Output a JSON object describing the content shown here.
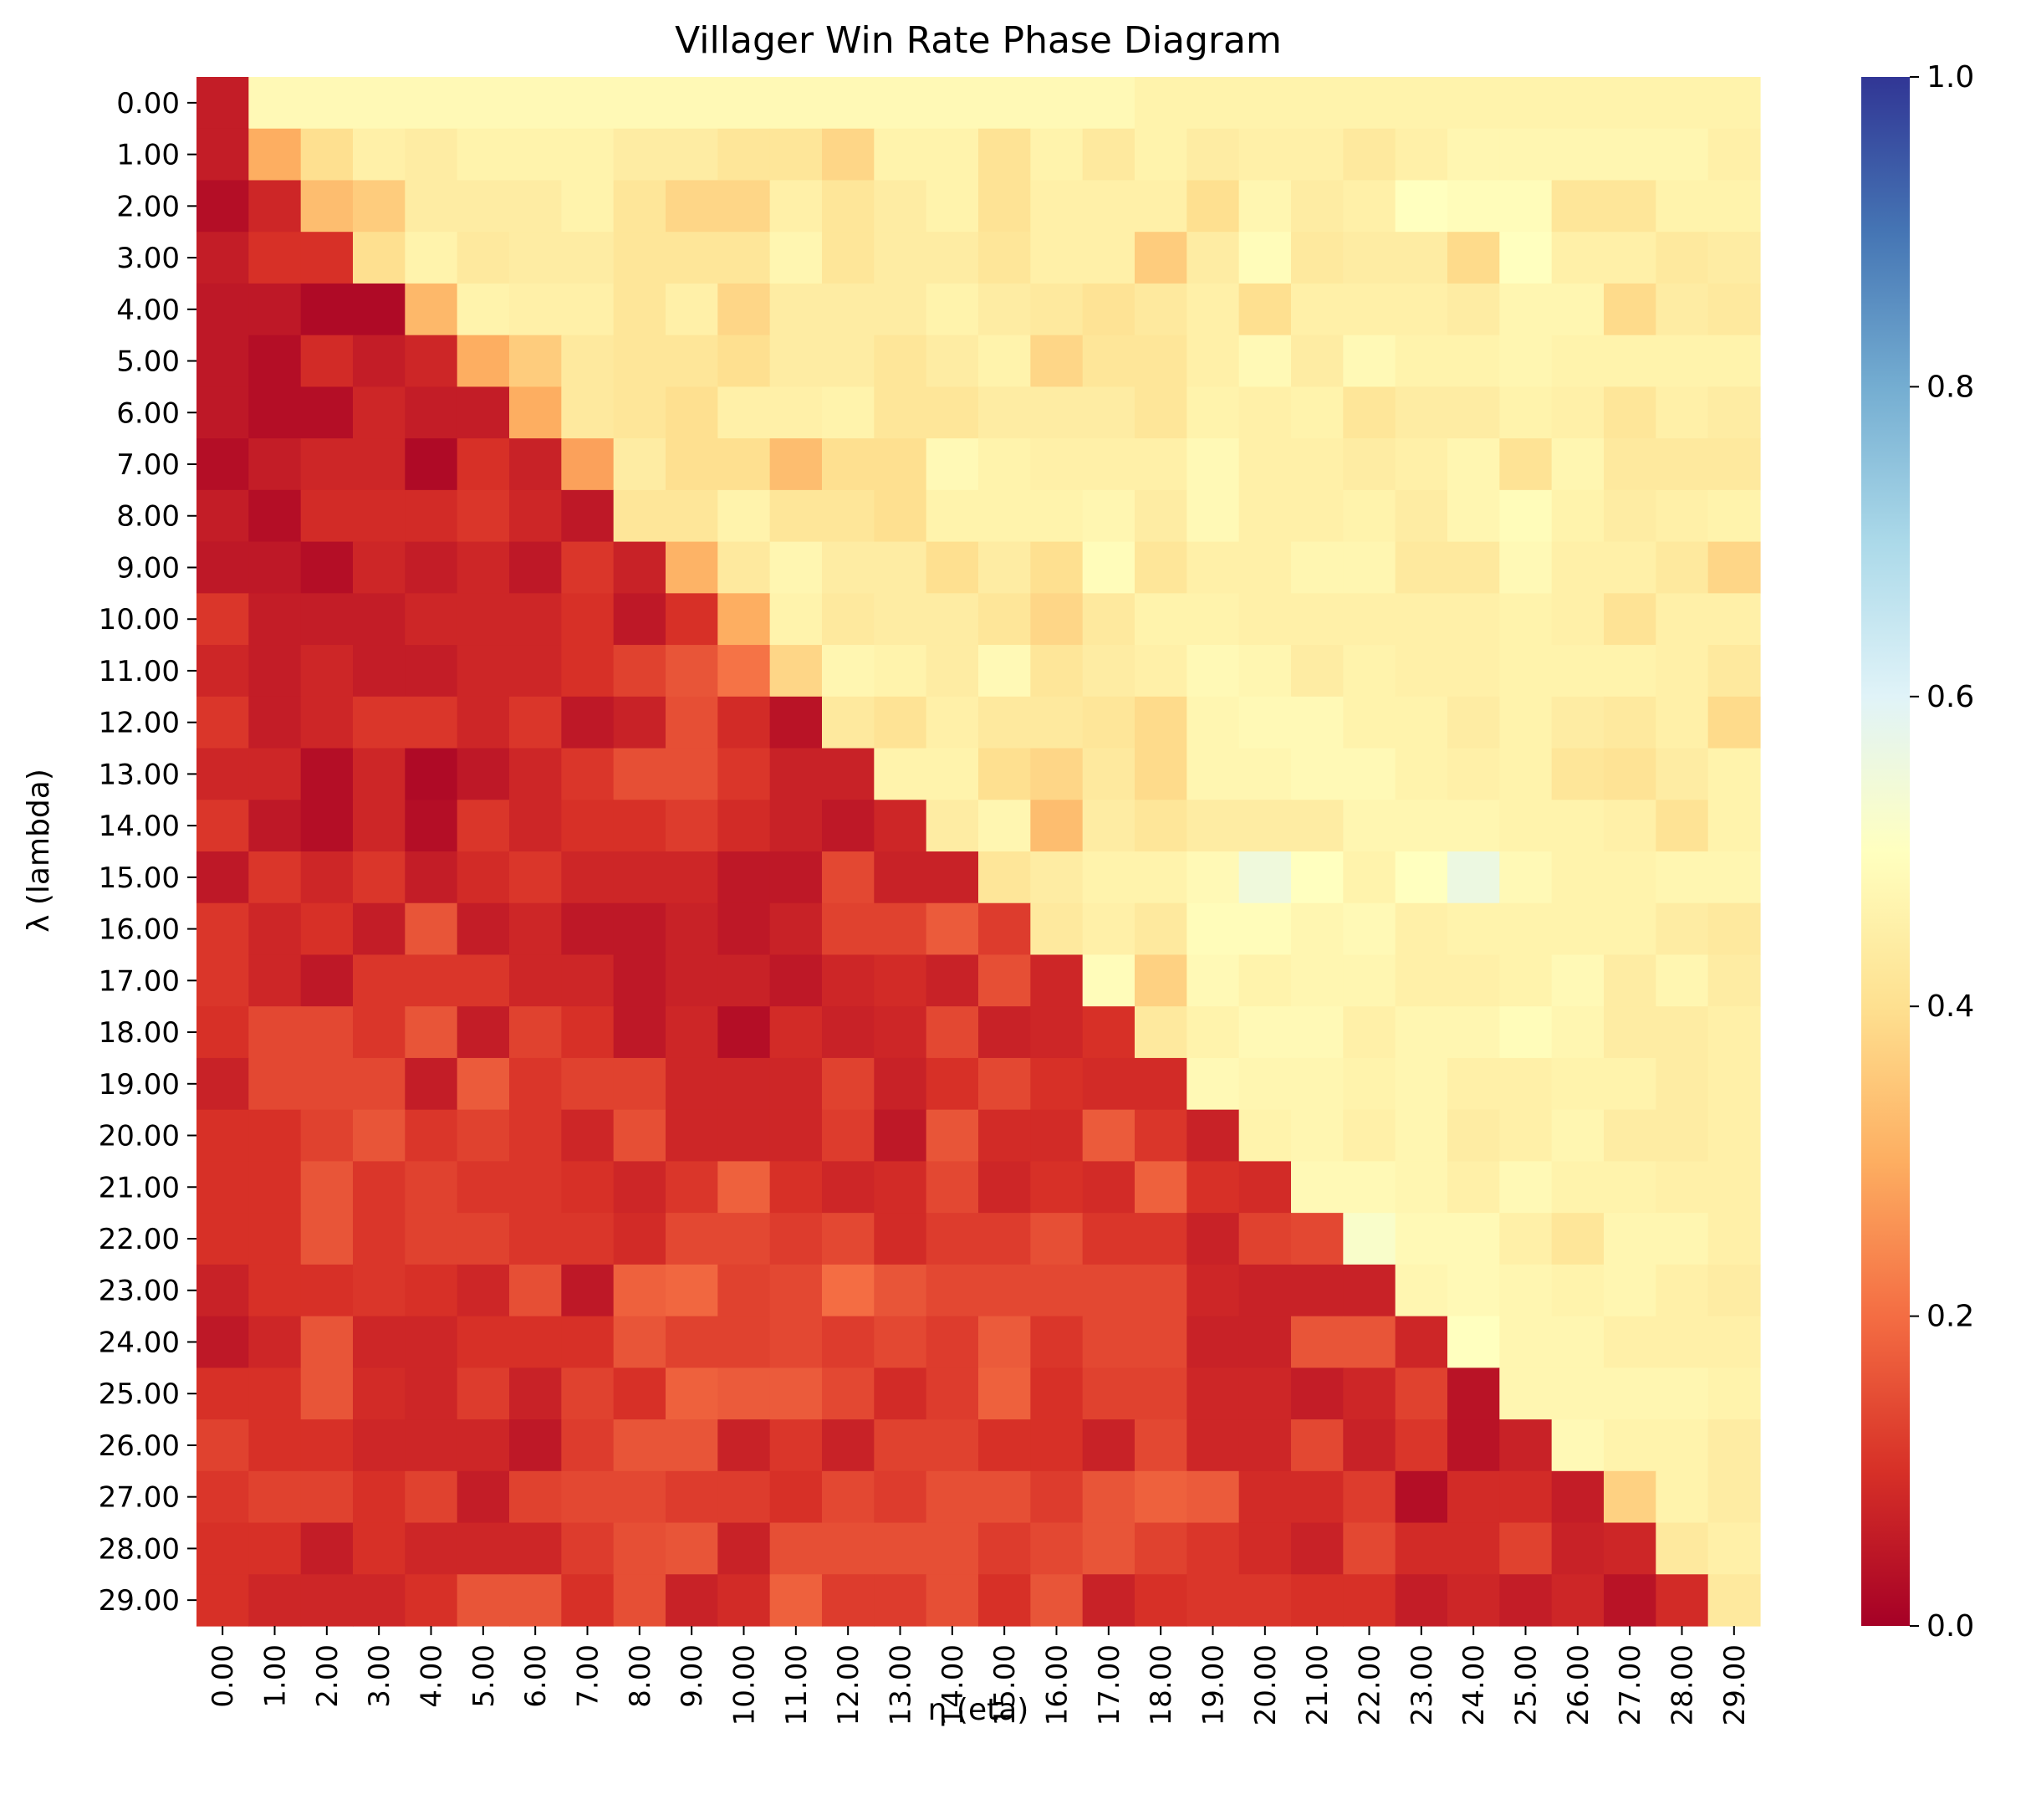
{
  "chart_data": {
    "type": "heatmap",
    "title": "Villager Win Rate Phase Diagram",
    "xlabel": "η (eta)",
    "ylabel": "λ (lambda)",
    "x_tick_labels": [
      "0.00",
      "1.00",
      "2.00",
      "3.00",
      "4.00",
      "5.00",
      "6.00",
      "7.00",
      "8.00",
      "9.00",
      "10.00",
      "11.00",
      "12.00",
      "13.00",
      "14.00",
      "15.00",
      "16.00",
      "17.00",
      "18.00",
      "19.00",
      "20.00",
      "21.00",
      "22.00",
      "23.00",
      "24.00",
      "25.00",
      "26.00",
      "27.00",
      "28.00",
      "29.00"
    ],
    "y_tick_labels": [
      "0.00",
      "1.00",
      "2.00",
      "3.00",
      "4.00",
      "5.00",
      "6.00",
      "7.00",
      "8.00",
      "9.00",
      "10.00",
      "11.00",
      "12.00",
      "13.00",
      "14.00",
      "15.00",
      "16.00",
      "17.00",
      "18.00",
      "19.00",
      "20.00",
      "21.00",
      "22.00",
      "23.00",
      "24.00",
      "25.00",
      "26.00",
      "27.00",
      "28.00",
      "29.00"
    ],
    "colormap": "RdYlBu",
    "vmin": 0.0,
    "vmax": 1.0,
    "colorbar_ticks": [
      "0.0",
      "0.2",
      "0.4",
      "0.6",
      "0.8",
      "1.0"
    ],
    "values": [
      [
        0.06,
        0.48,
        0.48,
        0.48,
        0.48,
        0.48,
        0.48,
        0.48,
        0.48,
        0.48,
        0.48,
        0.48,
        0.48,
        0.48,
        0.48,
        0.48,
        0.48,
        0.48,
        0.46,
        0.46,
        0.46,
        0.46,
        0.46,
        0.46,
        0.46,
        0.46,
        0.46,
        0.46,
        0.46,
        0.46
      ],
      [
        0.06,
        0.3,
        0.4,
        0.45,
        0.44,
        0.46,
        0.46,
        0.46,
        0.44,
        0.44,
        0.42,
        0.42,
        0.38,
        0.46,
        0.46,
        0.41,
        0.46,
        0.43,
        0.46,
        0.44,
        0.45,
        0.45,
        0.43,
        0.45,
        0.47,
        0.47,
        0.47,
        0.47,
        0.47,
        0.45
      ],
      [
        0.03,
        0.08,
        0.33,
        0.36,
        0.44,
        0.44,
        0.44,
        0.46,
        0.42,
        0.38,
        0.38,
        0.45,
        0.42,
        0.44,
        0.46,
        0.41,
        0.45,
        0.45,
        0.45,
        0.4,
        0.47,
        0.44,
        0.45,
        0.5,
        0.49,
        0.49,
        0.42,
        0.42,
        0.46,
        0.46
      ],
      [
        0.06,
        0.1,
        0.1,
        0.4,
        0.46,
        0.43,
        0.44,
        0.44,
        0.42,
        0.42,
        0.42,
        0.47,
        0.42,
        0.44,
        0.44,
        0.42,
        0.45,
        0.45,
        0.36,
        0.44,
        0.49,
        0.43,
        0.44,
        0.44,
        0.39,
        0.5,
        0.45,
        0.45,
        0.43,
        0.44
      ],
      [
        0.05,
        0.05,
        0.02,
        0.02,
        0.32,
        0.46,
        0.45,
        0.45,
        0.42,
        0.45,
        0.38,
        0.44,
        0.44,
        0.44,
        0.46,
        0.44,
        0.43,
        0.41,
        0.43,
        0.45,
        0.4,
        0.45,
        0.45,
        0.45,
        0.44,
        0.47,
        0.47,
        0.39,
        0.44,
        0.43
      ],
      [
        0.05,
        0.03,
        0.09,
        0.06,
        0.08,
        0.3,
        0.36,
        0.43,
        0.42,
        0.42,
        0.4,
        0.44,
        0.44,
        0.42,
        0.44,
        0.46,
        0.38,
        0.42,
        0.42,
        0.45,
        0.48,
        0.44,
        0.48,
        0.46,
        0.46,
        0.47,
        0.46,
        0.46,
        0.46,
        0.46
      ],
      [
        0.05,
        0.03,
        0.03,
        0.08,
        0.06,
        0.06,
        0.3,
        0.43,
        0.42,
        0.4,
        0.45,
        0.45,
        0.46,
        0.42,
        0.42,
        0.44,
        0.44,
        0.44,
        0.42,
        0.46,
        0.45,
        0.46,
        0.42,
        0.44,
        0.44,
        0.46,
        0.45,
        0.42,
        0.45,
        0.44
      ],
      [
        0.03,
        0.06,
        0.08,
        0.08,
        0.02,
        0.1,
        0.07,
        0.28,
        0.44,
        0.4,
        0.4,
        0.33,
        0.4,
        0.4,
        0.48,
        0.46,
        0.45,
        0.45,
        0.45,
        0.48,
        0.45,
        0.45,
        0.44,
        0.45,
        0.47,
        0.41,
        0.47,
        0.43,
        0.43,
        0.43
      ],
      [
        0.06,
        0.03,
        0.09,
        0.09,
        0.09,
        0.11,
        0.08,
        0.05,
        0.42,
        0.42,
        0.46,
        0.42,
        0.42,
        0.4,
        0.46,
        0.46,
        0.46,
        0.47,
        0.44,
        0.48,
        0.45,
        0.45,
        0.46,
        0.44,
        0.47,
        0.49,
        0.46,
        0.44,
        0.45,
        0.46
      ],
      [
        0.05,
        0.05,
        0.03,
        0.08,
        0.06,
        0.08,
        0.05,
        0.11,
        0.07,
        0.31,
        0.43,
        0.47,
        0.44,
        0.44,
        0.4,
        0.44,
        0.4,
        0.49,
        0.42,
        0.45,
        0.45,
        0.47,
        0.47,
        0.43,
        0.43,
        0.48,
        0.45,
        0.45,
        0.43,
        0.38
      ],
      [
        0.11,
        0.06,
        0.06,
        0.06,
        0.08,
        0.08,
        0.08,
        0.1,
        0.05,
        0.1,
        0.3,
        0.46,
        0.43,
        0.44,
        0.44,
        0.42,
        0.38,
        0.43,
        0.46,
        0.46,
        0.45,
        0.45,
        0.45,
        0.45,
        0.45,
        0.46,
        0.45,
        0.41,
        0.45,
        0.45
      ],
      [
        0.08,
        0.06,
        0.08,
        0.06,
        0.06,
        0.08,
        0.08,
        0.1,
        0.13,
        0.16,
        0.21,
        0.38,
        0.47,
        0.46,
        0.44,
        0.48,
        0.42,
        0.44,
        0.45,
        0.48,
        0.47,
        0.44,
        0.46,
        0.45,
        0.45,
        0.46,
        0.46,
        0.46,
        0.45,
        0.43
      ],
      [
        0.11,
        0.06,
        0.08,
        0.11,
        0.11,
        0.08,
        0.11,
        0.05,
        0.07,
        0.15,
        0.09,
        0.04,
        0.43,
        0.41,
        0.45,
        0.43,
        0.43,
        0.42,
        0.39,
        0.47,
        0.48,
        0.48,
        0.46,
        0.46,
        0.44,
        0.46,
        0.44,
        0.43,
        0.45,
        0.39
      ],
      [
        0.08,
        0.08,
        0.03,
        0.08,
        0.02,
        0.05,
        0.08,
        0.11,
        0.15,
        0.15,
        0.11,
        0.07,
        0.07,
        0.46,
        0.46,
        0.4,
        0.38,
        0.43,
        0.39,
        0.47,
        0.47,
        0.48,
        0.48,
        0.46,
        0.45,
        0.46,
        0.42,
        0.41,
        0.44,
        0.46
      ],
      [
        0.11,
        0.05,
        0.03,
        0.08,
        0.03,
        0.11,
        0.08,
        0.1,
        0.1,
        0.12,
        0.09,
        0.07,
        0.05,
        0.08,
        0.44,
        0.47,
        0.33,
        0.44,
        0.42,
        0.44,
        0.44,
        0.44,
        0.47,
        0.47,
        0.47,
        0.46,
        0.46,
        0.45,
        0.41,
        0.46
      ],
      [
        0.05,
        0.11,
        0.08,
        0.11,
        0.06,
        0.09,
        0.11,
        0.08,
        0.08,
        0.08,
        0.05,
        0.05,
        0.14,
        0.07,
        0.07,
        0.42,
        0.44,
        0.46,
        0.46,
        0.48,
        0.55,
        0.5,
        0.46,
        0.5,
        0.56,
        0.48,
        0.46,
        0.46,
        0.47,
        0.47
      ],
      [
        0.11,
        0.08,
        0.1,
        0.06,
        0.16,
        0.06,
        0.08,
        0.05,
        0.05,
        0.07,
        0.05,
        0.07,
        0.13,
        0.13,
        0.17,
        0.12,
        0.43,
        0.45,
        0.43,
        0.49,
        0.49,
        0.47,
        0.48,
        0.45,
        0.46,
        0.46,
        0.46,
        0.46,
        0.44,
        0.43
      ],
      [
        0.11,
        0.08,
        0.05,
        0.11,
        0.11,
        0.11,
        0.08,
        0.08,
        0.05,
        0.07,
        0.07,
        0.05,
        0.08,
        0.09,
        0.07,
        0.15,
        0.08,
        0.49,
        0.37,
        0.48,
        0.46,
        0.47,
        0.47,
        0.45,
        0.45,
        0.46,
        0.48,
        0.44,
        0.47,
        0.44
      ],
      [
        0.1,
        0.14,
        0.14,
        0.11,
        0.16,
        0.06,
        0.13,
        0.1,
        0.05,
        0.08,
        0.03,
        0.09,
        0.07,
        0.08,
        0.14,
        0.07,
        0.08,
        0.1,
        0.43,
        0.46,
        0.48,
        0.48,
        0.45,
        0.47,
        0.47,
        0.49,
        0.47,
        0.44,
        0.44,
        0.45
      ],
      [
        0.07,
        0.14,
        0.14,
        0.14,
        0.06,
        0.17,
        0.11,
        0.13,
        0.13,
        0.08,
        0.08,
        0.08,
        0.13,
        0.07,
        0.1,
        0.14,
        0.1,
        0.09,
        0.09,
        0.48,
        0.47,
        0.47,
        0.46,
        0.47,
        0.45,
        0.45,
        0.46,
        0.46,
        0.44,
        0.45
      ],
      [
        0.1,
        0.1,
        0.13,
        0.16,
        0.11,
        0.13,
        0.11,
        0.08,
        0.15,
        0.08,
        0.08,
        0.08,
        0.12,
        0.05,
        0.16,
        0.09,
        0.09,
        0.17,
        0.11,
        0.07,
        0.46,
        0.47,
        0.45,
        0.47,
        0.44,
        0.45,
        0.47,
        0.44,
        0.44,
        0.45
      ],
      [
        0.1,
        0.1,
        0.16,
        0.11,
        0.13,
        0.11,
        0.11,
        0.1,
        0.08,
        0.11,
        0.18,
        0.1,
        0.08,
        0.09,
        0.14,
        0.08,
        0.1,
        0.09,
        0.18,
        0.1,
        0.09,
        0.48,
        0.48,
        0.47,
        0.45,
        0.48,
        0.46,
        0.46,
        0.45,
        0.45
      ],
      [
        0.1,
        0.1,
        0.16,
        0.11,
        0.13,
        0.13,
        0.11,
        0.11,
        0.09,
        0.14,
        0.14,
        0.12,
        0.14,
        0.09,
        0.12,
        0.12,
        0.15,
        0.11,
        0.11,
        0.07,
        0.13,
        0.14,
        0.52,
        0.48,
        0.48,
        0.45,
        0.42,
        0.47,
        0.47,
        0.45
      ],
      [
        0.07,
        0.1,
        0.1,
        0.11,
        0.1,
        0.08,
        0.15,
        0.05,
        0.18,
        0.19,
        0.13,
        0.14,
        0.2,
        0.16,
        0.14,
        0.14,
        0.14,
        0.14,
        0.14,
        0.08,
        0.07,
        0.07,
        0.07,
        0.47,
        0.48,
        0.47,
        0.46,
        0.47,
        0.45,
        0.44
      ],
      [
        0.05,
        0.08,
        0.16,
        0.08,
        0.08,
        0.1,
        0.1,
        0.1,
        0.16,
        0.13,
        0.13,
        0.14,
        0.12,
        0.14,
        0.12,
        0.17,
        0.11,
        0.14,
        0.14,
        0.07,
        0.07,
        0.16,
        0.16,
        0.08,
        0.5,
        0.47,
        0.47,
        0.45,
        0.45,
        0.45
      ],
      [
        0.1,
        0.1,
        0.16,
        0.09,
        0.08,
        0.12,
        0.07,
        0.13,
        0.1,
        0.18,
        0.17,
        0.17,
        0.14,
        0.09,
        0.12,
        0.18,
        0.1,
        0.13,
        0.13,
        0.08,
        0.08,
        0.06,
        0.08,
        0.13,
        0.04,
        0.47,
        0.47,
        0.47,
        0.47,
        0.46
      ],
      [
        0.13,
        0.1,
        0.1,
        0.08,
        0.08,
        0.08,
        0.05,
        0.12,
        0.16,
        0.16,
        0.07,
        0.11,
        0.07,
        0.13,
        0.13,
        0.1,
        0.1,
        0.07,
        0.14,
        0.08,
        0.08,
        0.14,
        0.07,
        0.11,
        0.04,
        0.07,
        0.48,
        0.46,
        0.46,
        0.44
      ],
      [
        0.11,
        0.13,
        0.13,
        0.1,
        0.13,
        0.06,
        0.13,
        0.14,
        0.14,
        0.12,
        0.12,
        0.1,
        0.14,
        0.12,
        0.15,
        0.15,
        0.12,
        0.16,
        0.18,
        0.17,
        0.09,
        0.09,
        0.12,
        0.03,
        0.09,
        0.09,
        0.06,
        0.37,
        0.46,
        0.44
      ],
      [
        0.1,
        0.1,
        0.06,
        0.1,
        0.08,
        0.08,
        0.08,
        0.12,
        0.15,
        0.16,
        0.07,
        0.15,
        0.15,
        0.15,
        0.15,
        0.12,
        0.14,
        0.16,
        0.13,
        0.11,
        0.09,
        0.07,
        0.14,
        0.09,
        0.09,
        0.13,
        0.07,
        0.08,
        0.43,
        0.45
      ],
      [
        0.1,
        0.08,
        0.08,
        0.08,
        0.1,
        0.16,
        0.16,
        0.1,
        0.15,
        0.07,
        0.09,
        0.18,
        0.12,
        0.12,
        0.15,
        0.1,
        0.16,
        0.07,
        0.1,
        0.11,
        0.11,
        0.1,
        0.1,
        0.06,
        0.08,
        0.06,
        0.08,
        0.04,
        0.09,
        0.43
      ]
    ]
  }
}
